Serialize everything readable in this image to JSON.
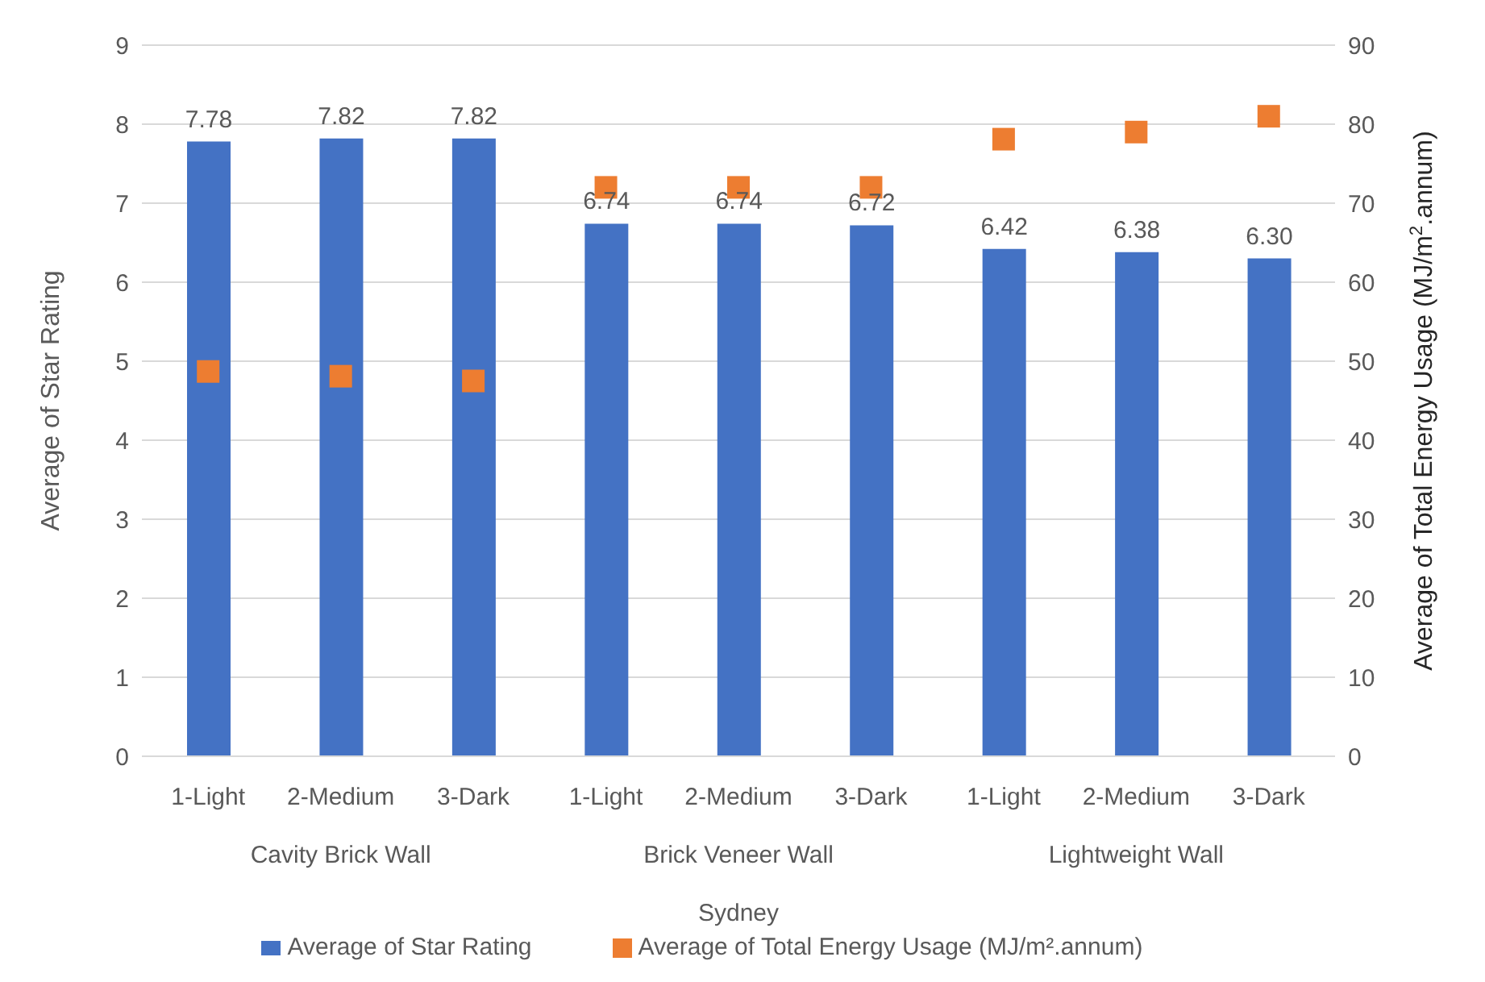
{
  "chart_data": {
    "type": "bar",
    "categories": [
      "1-Light",
      "2-Medium",
      "3-Dark",
      "1-Light",
      "2-Medium",
      "3-Dark",
      "1-Light",
      "2-Medium",
      "3-Dark"
    ],
    "annotations": [
      "Cavity Brick Wall",
      "Brick Veneer Wall",
      "Lightweight Wall",
      "Sydney"
    ],
    "ylabel": "Average of Star Rating",
    "y2label": "Average of Total Energy Usage (MJ/m$^{2}$.annum)",
    "ylim": [
      0,
      9
    ],
    "yticks": [
      0,
      1,
      2,
      3,
      4,
      5,
      6,
      7,
      8,
      9
    ],
    "y2lim": [
      0,
      90
    ],
    "y2ticks": [
      0,
      10,
      20,
      30,
      40,
      50,
      60,
      70,
      80,
      90
    ],
    "grid": "y",
    "legend": "bottom",
    "series": [
      {
        "name": "Average of Star Rating",
        "color": "#4472c4",
        "values": [
          7.78,
          7.82,
          7.82,
          6.74,
          6.74,
          6.72,
          6.42,
          6.38,
          6.3
        ],
        "value_labels": [
          "7.78",
          "7.82",
          "7.82",
          "6.74",
          "6.74",
          "6.72",
          "6.42",
          "6.38",
          "6.30"
        ]
      },
      {
        "name": "Average of Total Energy Usage (MJ/m².annum)",
        "type": "scatter",
        "axis": "y2",
        "marker": "square",
        "color": "#ed7d31",
        "values": [
          48.7,
          48.1,
          47.5,
          72.0,
          72.0,
          72.0,
          78.1,
          79.0,
          81.0
        ]
      }
    ]
  }
}
